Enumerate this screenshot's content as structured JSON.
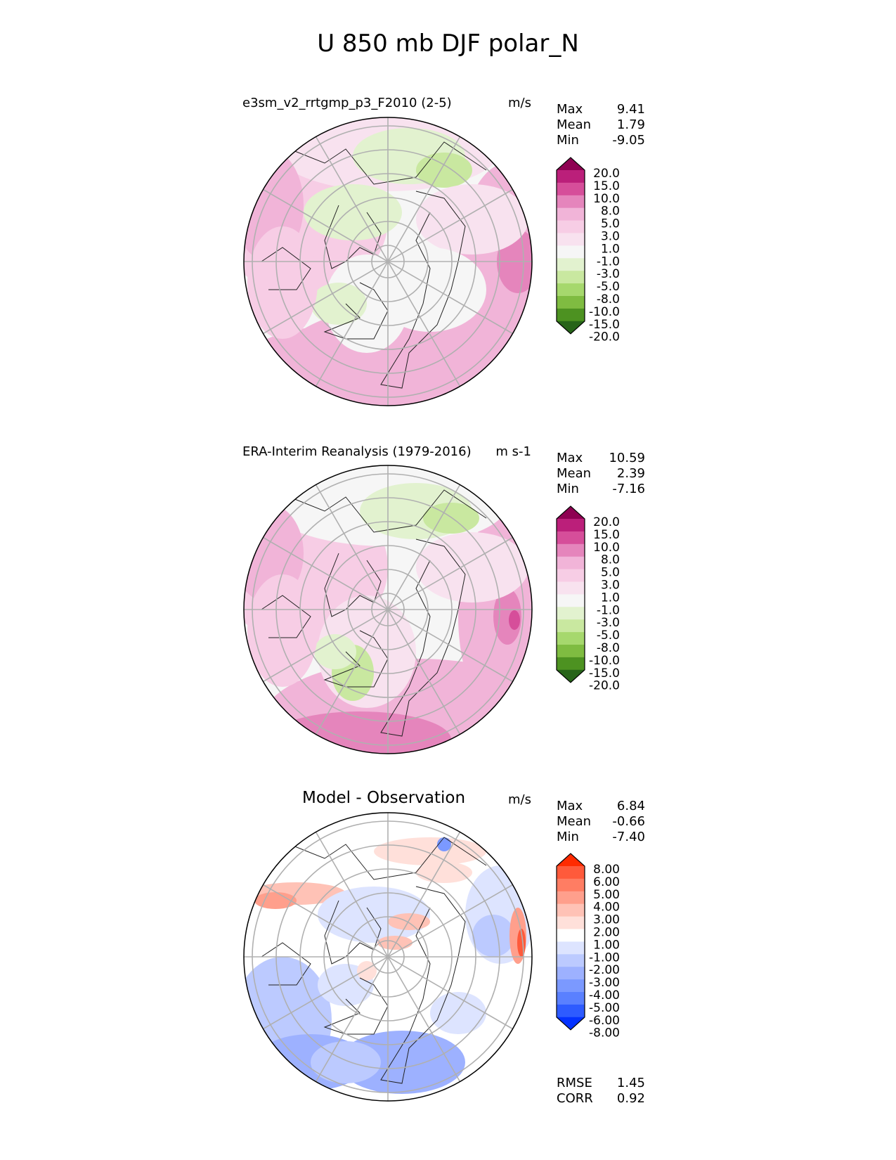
{
  "title": "U 850 mb DJF polar_N",
  "colors": {
    "div_wind": [
      "#276419",
      "#4d9221",
      "#7fbc41",
      "#a6d86d",
      "#c9e8a0",
      "#e2f2cf",
      "#f6f6f6",
      "#f8e2ef",
      "#f7cde5",
      "#f1b4d8",
      "#e585bc",
      "#d64e9a",
      "#bb1f7a",
      "#8e0152"
    ],
    "diff": [
      "#0432ff",
      "#2e5bff",
      "#5a80ff",
      "#7b99ff",
      "#9db1ff",
      "#bccaff",
      "#dde4ff",
      "#ffffff",
      "#ffe0da",
      "#ffc2b6",
      "#ff9f8c",
      "#ff7d63",
      "#ff5a3b",
      "#ff2b00"
    ]
  },
  "chart_data": [
    {
      "type": "heatmap",
      "projection": "polar_N",
      "title": "e3sm_v2_rrtgmp_p3_F2010 (2-5)",
      "units": "m/s",
      "stats": {
        "max": "9.41",
        "mean": "1.79",
        "min": "-9.05"
      },
      "colorbar_ticks": [
        "20.0",
        "15.0",
        "10.0",
        "8.0",
        "5.0",
        "3.0",
        "1.0",
        "-1.0",
        "-3.0",
        "-5.0",
        "-8.0",
        "-10.0",
        "-15.0",
        "-20.0"
      ]
    },
    {
      "type": "heatmap",
      "projection": "polar_N",
      "title": "ERA-Interim Reanalysis (1979-2016)",
      "units": "m s-1",
      "stats": {
        "max": "10.59",
        "mean": "2.39",
        "min": "-7.16"
      },
      "colorbar_ticks": [
        "20.0",
        "15.0",
        "10.0",
        "8.0",
        "5.0",
        "3.0",
        "1.0",
        "-1.0",
        "-3.0",
        "-5.0",
        "-8.0",
        "-10.0",
        "-15.0",
        "-20.0"
      ]
    },
    {
      "type": "heatmap",
      "projection": "polar_N",
      "title": "Model - Observation",
      "units": "m/s",
      "stats": {
        "max": "6.84",
        "mean": "-0.66",
        "min": "-7.40"
      },
      "colorbar_ticks": [
        "8.00",
        "6.00",
        "5.00",
        "4.00",
        "3.00",
        "2.00",
        "1.00",
        "-1.00",
        "-2.00",
        "-3.00",
        "-4.00",
        "-5.00",
        "-6.00",
        "-8.00"
      ],
      "rmse": "1.45",
      "corr": "0.92"
    }
  ],
  "labels": {
    "max": "Max",
    "mean": "Mean",
    "min": "Min",
    "rmse": "RMSE",
    "corr": "CORR"
  }
}
